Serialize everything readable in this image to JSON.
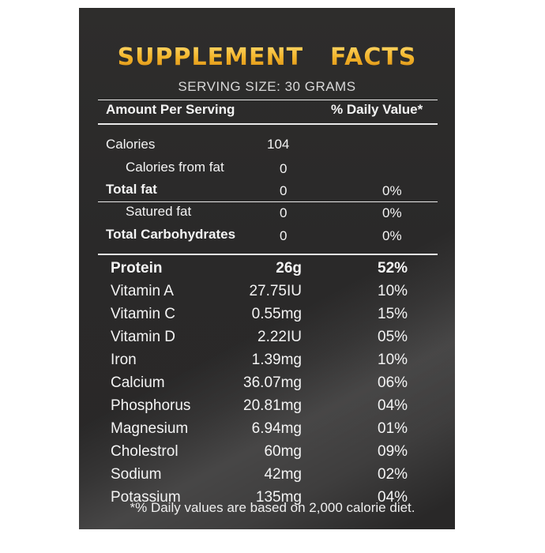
{
  "header": {
    "title_word1": "SUPPLEMENT",
    "title_word2": "FACTS",
    "serving_size": "SERVING SIZE: 30 GRAMS"
  },
  "columns": {
    "amount_per_serving": "Amount Per Serving",
    "daily_value": "% Daily Value*"
  },
  "top_rows": [
    {
      "label": "Calories",
      "amount": "104",
      "dv": ""
    },
    {
      "label": "Calories from fat",
      "amount": "0",
      "dv": ""
    },
    {
      "label": "Total fat",
      "amount": "0",
      "dv": "0%"
    },
    {
      "label": "Satured fat",
      "amount": "0",
      "dv": "0%"
    },
    {
      "label": "Total Carbohydrates",
      "amount": "0",
      "dv": "0%"
    }
  ],
  "nutrients": [
    {
      "label": "Protein",
      "amount": "26g",
      "dv": "52%"
    },
    {
      "label": "Vitamin A",
      "amount": "27.75IU",
      "dv": "10%"
    },
    {
      "label": "Vitamin C",
      "amount": "0.55mg",
      "dv": "15%"
    },
    {
      "label": "Vitamin D",
      "amount": "2.22IU",
      "dv": "05%"
    },
    {
      "label": "Iron",
      "amount": "1.39mg",
      "dv": "10%"
    },
    {
      "label": "Calcium",
      "amount": "36.07mg",
      "dv": "06%"
    },
    {
      "label": "Phosphorus",
      "amount": "20.81mg",
      "dv": "04%"
    },
    {
      "label": "Magnesium",
      "amount": "6.94mg",
      "dv": "01%"
    },
    {
      "label": "Cholestrol",
      "amount": "60mg",
      "dv": "09%"
    },
    {
      "label": "Sodium",
      "amount": "42mg",
      "dv": "02%"
    },
    {
      "label": "Potassium",
      "amount": "135mg",
      "dv": "04%"
    }
  ],
  "footnote": "*% Daily values are based on 2,000 calorie diet.",
  "colors": {
    "panel": "#2b2a2a",
    "title_gold": "#f2b22a",
    "text": "#f4f4f4"
  }
}
